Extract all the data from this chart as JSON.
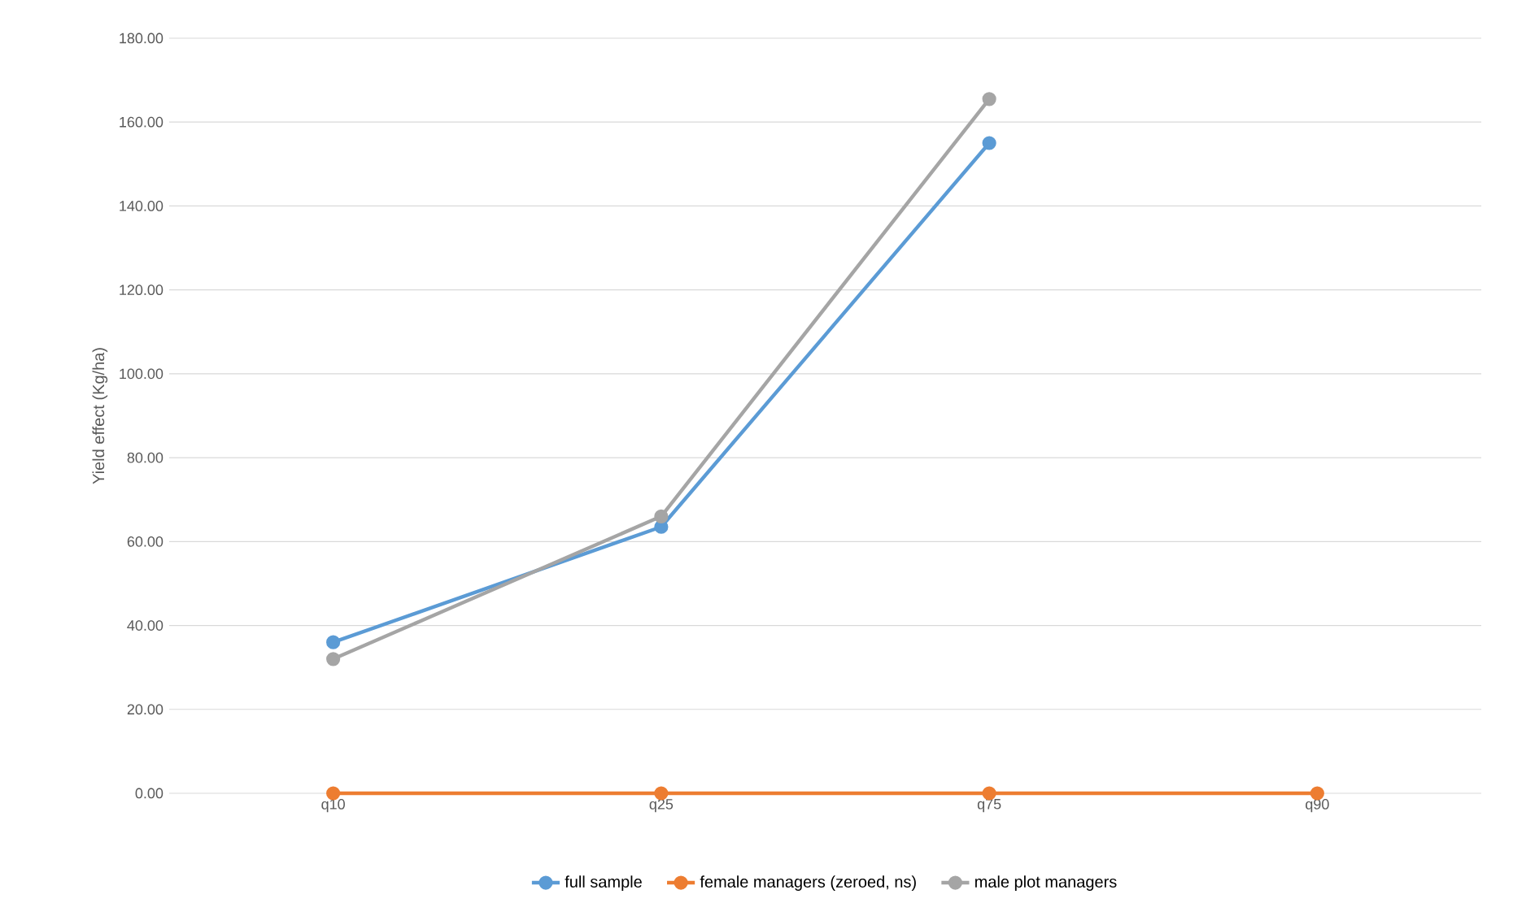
{
  "chart_data": {
    "type": "line",
    "ylabel": "Yield effect (Kg/ha)",
    "categories": [
      "q10",
      "q25",
      "q75",
      "q90"
    ],
    "series": [
      {
        "name": "full sample",
        "color": "#5b9bd5",
        "values": [
          36,
          63.5,
          155,
          null
        ]
      },
      {
        "name": "female managers (zeroed, ns)",
        "color": "#ed7d31",
        "values": [
          0,
          0,
          0,
          0
        ]
      },
      {
        "name": "male plot managers",
        "color": "#a5a5a5",
        "values": [
          32,
          66,
          165.5,
          null
        ]
      }
    ],
    "ylim": [
      0,
      180
    ],
    "yticks": [
      {
        "value": 0,
        "label": "0.00"
      },
      {
        "value": 20,
        "label": "20.00"
      },
      {
        "value": 40,
        "label": "40.00"
      },
      {
        "value": 60,
        "label": "60.00"
      },
      {
        "value": 80,
        "label": "80.00"
      },
      {
        "value": 100,
        "label": "100.00"
      },
      {
        "value": 120,
        "label": "120.00"
      },
      {
        "value": 140,
        "label": "140.00"
      },
      {
        "value": 160,
        "label": "160.00"
      },
      {
        "value": 180,
        "label": "180.00"
      }
    ],
    "grid": "y",
    "legend": "bottom",
    "marker": "circle",
    "line_style": "solid"
  }
}
